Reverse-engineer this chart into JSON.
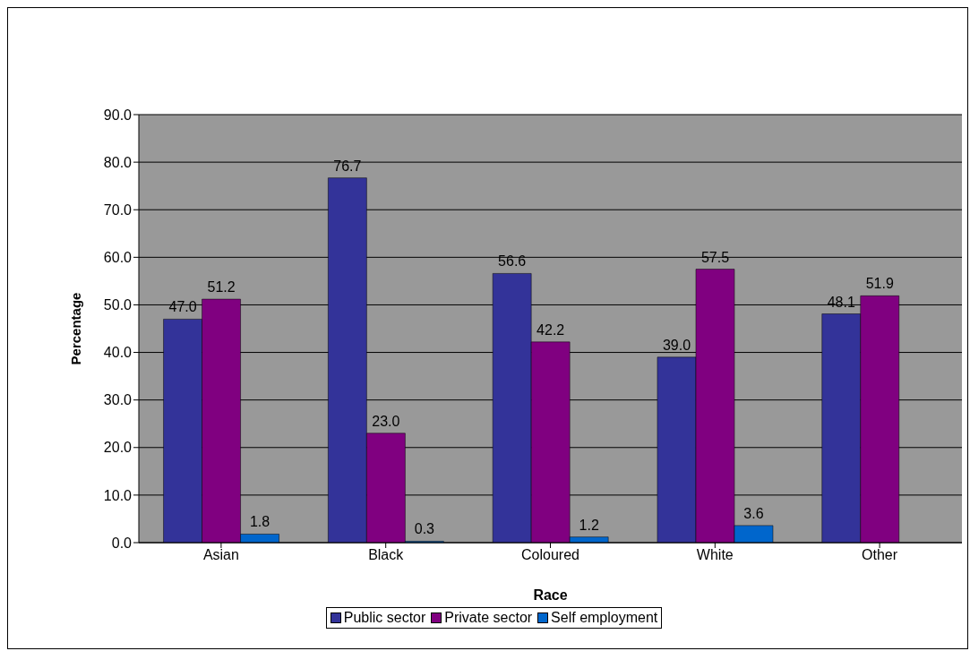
{
  "chart_data": {
    "type": "bar",
    "xlabel": "Race",
    "ylabel": "Percentage",
    "categories": [
      "Asian",
      "Black",
      "Coloured",
      "White",
      "Other"
    ],
    "series": [
      {
        "name": "Public sector",
        "color": "#333399",
        "values": [
          47.0,
          76.7,
          56.6,
          39.0,
          48.1
        ],
        "value_labels": [
          "47.0",
          "76.7",
          "56.6",
          "39.0",
          "48.1"
        ]
      },
      {
        "name": "Private sector",
        "color": "#800080",
        "values": [
          51.2,
          23.0,
          42.2,
          57.5,
          51.9
        ],
        "value_labels": [
          "51.2",
          "23.0",
          "42.2",
          "57.5",
          "51.9"
        ]
      },
      {
        "name": "Self employment",
        "color": "#0066cc",
        "values": [
          1.8,
          0.3,
          1.2,
          3.6,
          null
        ],
        "value_labels": [
          "1.8",
          "0.3",
          "1.2",
          "3.6",
          null
        ]
      }
    ],
    "ylim": [
      0,
      90
    ],
    "yticks": [
      {
        "value": 0,
        "label": "0.0"
      },
      {
        "value": 10,
        "label": "10.0"
      },
      {
        "value": 20,
        "label": "20.0"
      },
      {
        "value": 30,
        "label": "30.0"
      },
      {
        "value": 40,
        "label": "40.0"
      },
      {
        "value": 50,
        "label": "50.0"
      },
      {
        "value": 60,
        "label": "60.0"
      },
      {
        "value": 70,
        "label": "70.0"
      },
      {
        "value": 80,
        "label": "80.0"
      },
      {
        "value": 90,
        "label": "90.0"
      }
    ],
    "grid": "y",
    "legend": "bottom"
  }
}
